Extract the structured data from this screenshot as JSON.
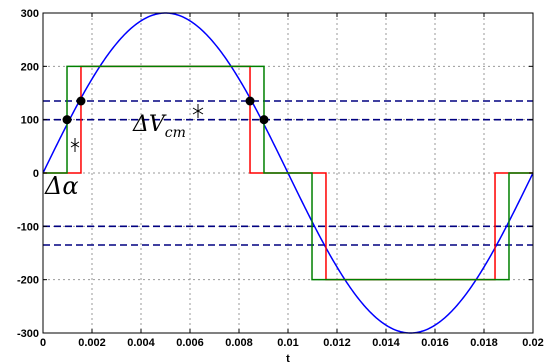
{
  "chart_data": {
    "type": "line",
    "title": "",
    "xlabel": "t",
    "ylabel": "",
    "xlim": [
      0,
      0.02
    ],
    "ylim": [
      -300,
      300
    ],
    "grid": true,
    "x_ticks": [
      "0",
      "0.002",
      "0.004",
      "0.006",
      "0.008",
      "0.01",
      "0.012",
      "0.014",
      "0.016",
      "0.018",
      "0.02"
    ],
    "y_ticks": [
      "300",
      "200",
      "100",
      "0",
      "-100",
      "-200",
      "-300"
    ],
    "x_tick_values": [
      0,
      0.002,
      0.004,
      0.006,
      0.008,
      0.01,
      0.012,
      0.014,
      0.016,
      0.018,
      0.02
    ],
    "y_tick_values": [
      300,
      200,
      100,
      0,
      -100,
      -200,
      -300
    ],
    "series": [
      {
        "color": "#0000ff",
        "style": "solid",
        "function": "sine",
        "amplitude": 300,
        "frequency_hz": 50
      },
      {
        "color": "#ff0000",
        "style": "solid",
        "points": [
          [
            0,
            0
          ],
          [
            0.00155,
            0
          ],
          [
            0.00155,
            200
          ],
          [
            0.00845,
            200
          ],
          [
            0.00845,
            0
          ],
          [
            0.01155,
            0
          ],
          [
            0.01155,
            -200
          ],
          [
            0.01845,
            -200
          ],
          [
            0.01845,
            0
          ],
          [
            0.02,
            0
          ]
        ]
      },
      {
        "color": "#008000",
        "style": "solid",
        "points": [
          [
            0,
            0
          ],
          [
            0.00098,
            0
          ],
          [
            0.00098,
            200
          ],
          [
            0.00902,
            200
          ],
          [
            0.00902,
            0
          ],
          [
            0.01098,
            0
          ],
          [
            0.01098,
            -200
          ],
          [
            0.01902,
            -200
          ],
          [
            0.01902,
            0
          ],
          [
            0.02,
            0
          ]
        ]
      }
    ],
    "reference_lines": [
      {
        "y": 135,
        "color": "#000080",
        "style": "dashed"
      },
      {
        "y": 100,
        "color": "#000080",
        "style": "dashed"
      },
      {
        "y": -100,
        "color": "#000080",
        "style": "dashed"
      },
      {
        "y": -135,
        "color": "#000080",
        "style": "dashed"
      }
    ],
    "markers": [
      {
        "x": 0.00098,
        "y": 100
      },
      {
        "x": 0.00155,
        "y": 135
      },
      {
        "x": 0.00845,
        "y": 135
      },
      {
        "x": 0.00902,
        "y": 100
      }
    ],
    "annotations": {
      "delta_v": "ΔV",
      "delta_v_sub": "cm",
      "delta_alpha": "Δα"
    }
  },
  "colors": {
    "frame": "#000000",
    "grid": "#999999",
    "background": "#ffffff"
  }
}
